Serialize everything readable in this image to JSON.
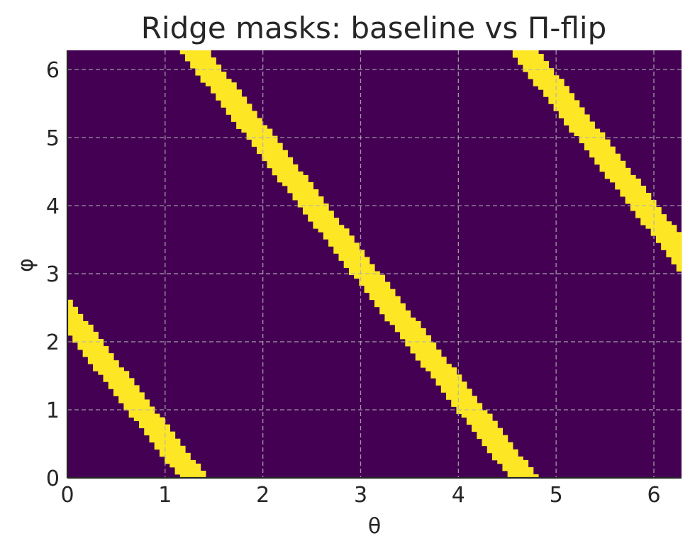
{
  "chart_data": {
    "type": "heatmap",
    "title": "Ridge masks: baseline vs Π-flip",
    "xlabel": "θ",
    "ylabel": "φ",
    "xlim": [
      0,
      6.283
    ],
    "ylim": [
      0,
      6.283
    ],
    "x_ticks": [
      0,
      1,
      2,
      3,
      4,
      5,
      6
    ],
    "y_ticks": [
      0,
      1,
      2,
      3,
      4,
      5,
      6
    ],
    "grid": true,
    "grid_size": 120,
    "colors": {
      "off": "#440154",
      "on": "#fde725"
    },
    "mask": {
      "relation": "phi = 2*pi*k + phi0 - slope*theta",
      "slope": 1.86,
      "phi0": 2.4,
      "ridge_half_width_phi": 0.27
    }
  }
}
